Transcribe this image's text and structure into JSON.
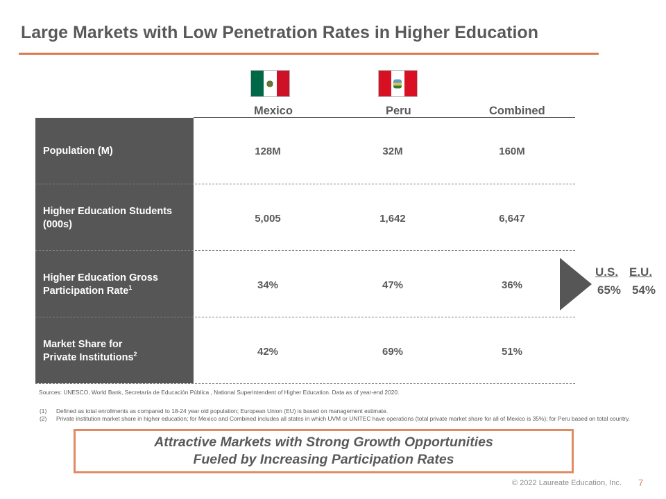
{
  "title": "Large Markets with Low Penetration Rates in Higher Education",
  "flags": [
    {
      "name": "mexico-flag",
      "colors": [
        "#006847",
        "#ffffff",
        "#ce1126"
      ]
    },
    {
      "name": "peru-flag",
      "colors": [
        "#d91023",
        "#ffffff",
        "#d91023"
      ]
    }
  ],
  "columns": [
    "Mexico",
    "Peru",
    "Combined"
  ],
  "rows": [
    {
      "label_lines": [
        "Population (M)"
      ],
      "footnote": "",
      "values": [
        "128M",
        "32M",
        "160M"
      ]
    },
    {
      "label_lines": [
        "Higher Education Students",
        "(000s)"
      ],
      "footnote": "",
      "values": [
        "5,005",
        "1,642",
        "6,647"
      ]
    },
    {
      "label_lines": [
        "Higher Education Gross",
        "Participation Rate"
      ],
      "footnote": "1",
      "values": [
        "34%",
        "47%",
        "36%"
      ]
    },
    {
      "label_lines": [
        "Market Share for",
        "Private Institutions"
      ],
      "footnote": "2",
      "values": [
        "42%",
        "69%",
        "51%"
      ]
    }
  ],
  "comparison": {
    "us_label": "U.S.",
    "us_value": "65%",
    "eu_label": "E.U.",
    "eu_value": "54%"
  },
  "sources": "Sources:  UNESCO, World Bank, Secretaría de Educación Pública , National Superintendent of Higher Education.  Data as of year-end 2020.",
  "footnotes": [
    {
      "num": "(1)",
      "text": "Defined as total enrollments as compared to 18-24 year old population; European Union (EU) is based on management estimate."
    },
    {
      "num": "(2)",
      "text": "Private institution market share in higher education; for Mexico and Combined includes all states in which UVM or UNITEC have operations (total private market share for all of Mexico is 35%); for Peru based on total country."
    }
  ],
  "callout": {
    "line1": "Attractive Markets with Strong Growth Opportunities",
    "line2": "Fueled by Increasing Participation Rates"
  },
  "footer": "© 2022 Laureate Education, Inc.",
  "page_number": "7",
  "colors": {
    "accent": "#d97a50",
    "label_column": "#565656",
    "text": "#595959",
    "callout_border": "#e08b63"
  }
}
